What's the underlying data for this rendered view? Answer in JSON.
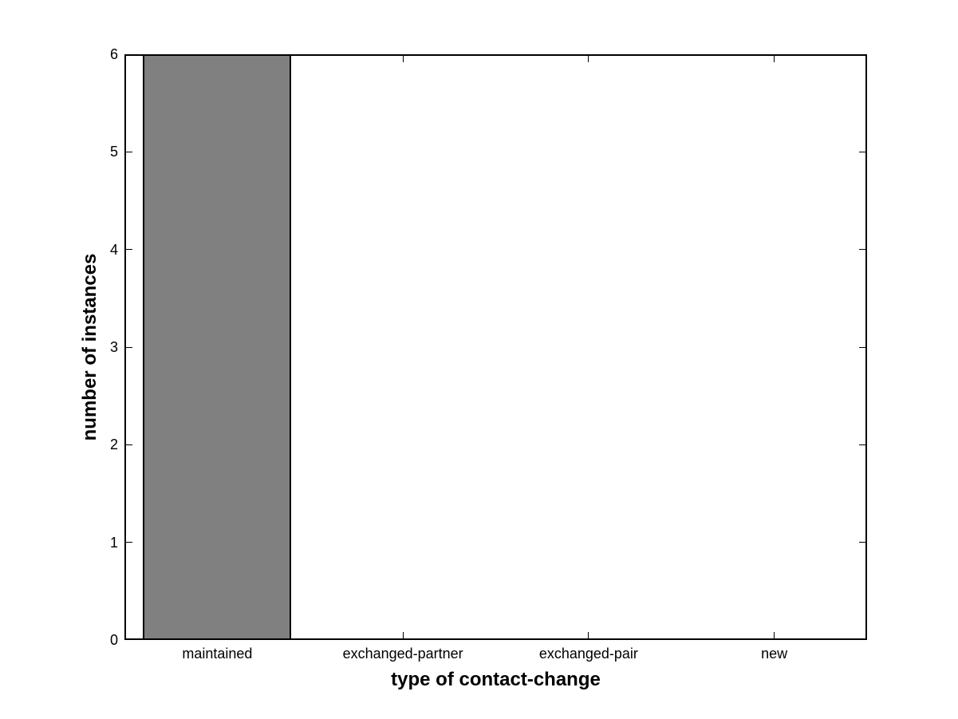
{
  "figure": {
    "background_color": "#ffffff"
  },
  "chart_data": {
    "type": "bar",
    "categories": [
      "maintained",
      "exchanged-partner",
      "exchanged-pair",
      "new"
    ],
    "values": [
      6,
      0,
      0,
      0
    ],
    "title": "",
    "xlabel": "type of contact-change",
    "ylabel": "number of instances",
    "ylim": [
      0,
      6
    ],
    "yticks": [
      "0",
      "1",
      "2",
      "3",
      "4",
      "5",
      "6"
    ],
    "grid": false,
    "legend": "none",
    "bar_width_fraction": 0.8,
    "bar_fill_color": "#808080",
    "bar_edge_color": "#000000",
    "axis_color": "#000000",
    "tick_direction": "in",
    "box": true
  }
}
